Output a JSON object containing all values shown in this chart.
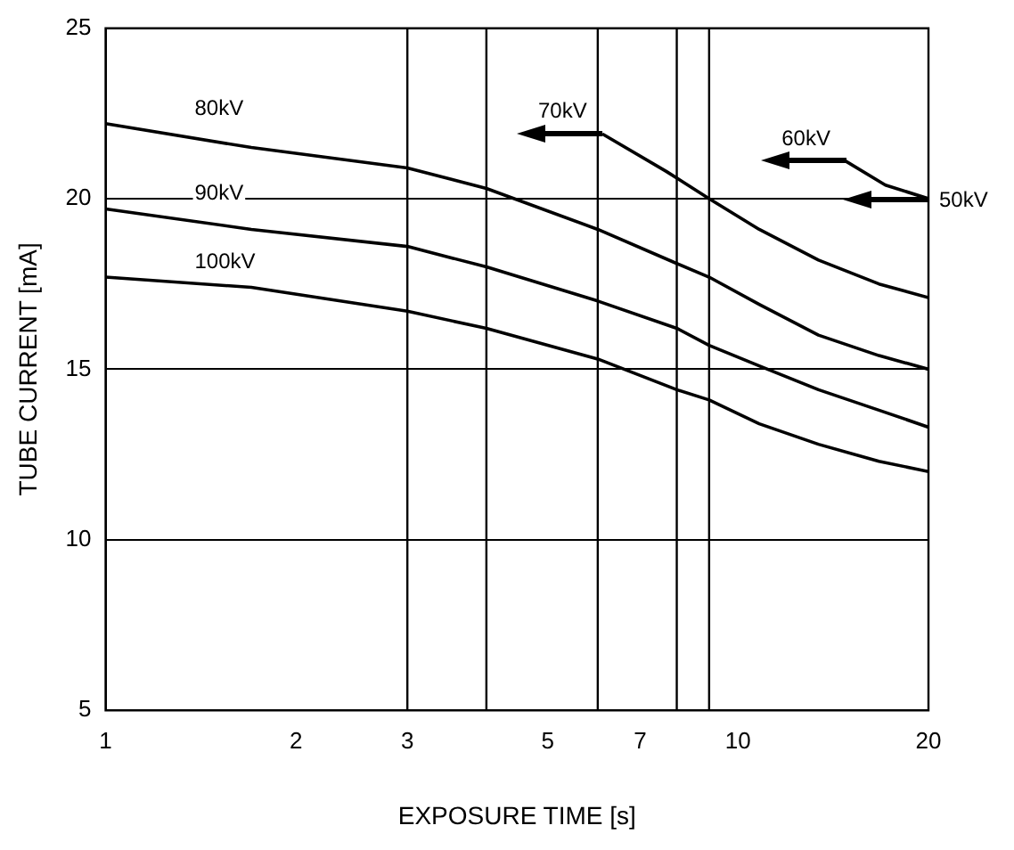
{
  "chart_data": {
    "type": "line",
    "xlabel": "EXPOSURE TIME [s]",
    "ylabel": "TUBE CURRENT [mA]",
    "log": "x",
    "xlim": [
      1,
      20
    ],
    "xticks": [
      1,
      2,
      3,
      5,
      7,
      10,
      20
    ],
    "ylim": [
      5,
      25
    ],
    "yticks": [
      5,
      10,
      15,
      20,
      25
    ],
    "grid": "y",
    "legend": false,
    "marker": "none",
    "line_style": "solid",
    "ref_lines": [
      {
        "axis": "x",
        "value": 3,
        "color": "#000000"
      },
      {
        "axis": "x",
        "value": 4,
        "color": "#000000"
      },
      {
        "axis": "x",
        "value": 6,
        "color": "#000000"
      },
      {
        "axis": "x",
        "value": 8,
        "color": "#000000"
      },
      {
        "axis": "x",
        "value": 9,
        "color": "#000000"
      }
    ],
    "series": [
      {
        "name": "80kV",
        "color": "#000000",
        "x": [
          1,
          1.7,
          3,
          4,
          6,
          8,
          9,
          10.8,
          13.4,
          16.7,
          20
        ],
        "values": [
          22.2,
          21.5,
          20.9,
          20.3,
          19.1,
          18.1,
          17.7,
          16.9,
          16,
          15.4,
          15
        ]
      },
      {
        "name": "90kV",
        "color": "#000000",
        "x": [
          1,
          1.7,
          3,
          4,
          6,
          8,
          9,
          10.8,
          13.4,
          16.7,
          20
        ],
        "values": [
          19.7,
          19.1,
          18.6,
          18,
          17,
          16.2,
          15.7,
          15.1,
          14.4,
          13.8,
          13.3
        ]
      },
      {
        "name": "100kV",
        "color": "#000000",
        "x": [
          1,
          1.7,
          3,
          4,
          6,
          8,
          9,
          10.8,
          13.4,
          16.7,
          20
        ],
        "values": [
          17.7,
          17.4,
          16.7,
          16.2,
          15.3,
          14.4,
          14.1,
          13.4,
          12.8,
          12.3,
          12
        ]
      },
      {
        "name": "70kV",
        "color": "#000000",
        "x": [
          6.1,
          7.7,
          9,
          10.8,
          13.4,
          16.7,
          20
        ],
        "values": [
          21.9,
          20.8,
          20,
          19.1,
          18.2,
          17.5,
          17.1
        ]
      },
      {
        "name": "60kV",
        "color": "#000000",
        "x": [
          14.8,
          17.1,
          20
        ],
        "values": [
          21.1,
          20.4,
          20
        ]
      }
    ],
    "annotations": [
      {
        "text": "50kV",
        "x": 20,
        "y": 20
      }
    ]
  }
}
